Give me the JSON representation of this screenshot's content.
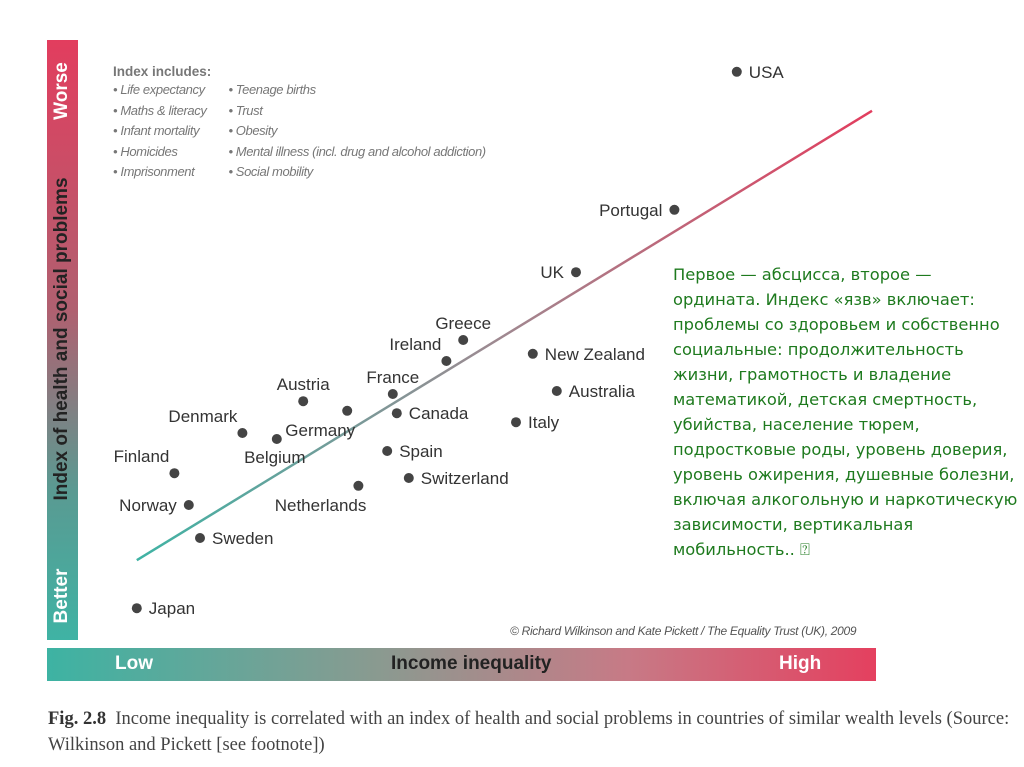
{
  "chart_data": {
    "type": "scatter",
    "ylabel": "Index of health and social problems",
    "xlabel": "Income inequality",
    "y_low": "Better",
    "y_high": "Worse",
    "x_low": "Low",
    "x_high": "High",
    "xlim": [
      0,
      100
    ],
    "ylim": [
      0,
      100
    ],
    "grid": false,
    "points": [
      {
        "name": "USA",
        "x": 82.1,
        "y": 94.7,
        "pos": "right"
      },
      {
        "name": "Portugal",
        "x": 74.3,
        "y": 71.7,
        "pos": "left"
      },
      {
        "name": "UK",
        "x": 62,
        "y": 61.3,
        "pos": "left"
      },
      {
        "name": "Greece",
        "x": 47.9,
        "y": 50,
        "pos": "above"
      },
      {
        "name": "Ireland",
        "x": 45.8,
        "y": 46.5,
        "pos": "aboveleft"
      },
      {
        "name": "New Zealand",
        "x": 56.6,
        "y": 47.7,
        "pos": "right"
      },
      {
        "name": "Australia",
        "x": 59.6,
        "y": 41.5,
        "pos": "right"
      },
      {
        "name": "France",
        "x": 39.1,
        "y": 41,
        "pos": "above"
      },
      {
        "name": "Canada",
        "x": 39.6,
        "y": 37.8,
        "pos": "right"
      },
      {
        "name": "Italy",
        "x": 54.5,
        "y": 36.3,
        "pos": "right"
      },
      {
        "name": "Austria",
        "x": 27.9,
        "y": 39.8,
        "pos": "above"
      },
      {
        "name": "Germany",
        "x": 33.4,
        "y": 38.2,
        "pos": "belowleft"
      },
      {
        "name": "Denmark",
        "x": 20.3,
        "y": 34.5,
        "pos": "aboveleft"
      },
      {
        "name": "Belgium",
        "x": 24.6,
        "y": 33.5,
        "pos": "below"
      },
      {
        "name": "Finland",
        "x": 11.8,
        "y": 27.8,
        "pos": "aboveleft"
      },
      {
        "name": "Spain",
        "x": 38.4,
        "y": 31.5,
        "pos": "right"
      },
      {
        "name": "Switzerland",
        "x": 41.1,
        "y": 27,
        "pos": "right"
      },
      {
        "name": "Netherlands",
        "x": 34.8,
        "y": 25.7,
        "pos": "belowleft"
      },
      {
        "name": "Norway",
        "x": 13.6,
        "y": 22.5,
        "pos": "left"
      },
      {
        "name": "Sweden",
        "x": 15,
        "y": 17,
        "pos": "right"
      },
      {
        "name": "Japan",
        "x": 7.1,
        "y": 5.3,
        "pos": "right"
      }
    ],
    "trendline": {
      "from": [
        7.1,
        13.3
      ],
      "to": [
        99,
        88.2
      ]
    },
    "index_box": {
      "title": "Index includes:",
      "col1": [
        "• Life expectancy",
        "• Maths & literacy",
        "• Infant mortality",
        "• Homicides",
        "• Imprisonment"
      ],
      "col2": [
        "• Teenage births",
        "• Trust",
        "• Obesity",
        "• Mental illness (incl. drug and alcohol addiction)",
        "• Social mobility"
      ]
    },
    "credit": "© Richard Wilkinson and Kate Pickett / The Equality Trust (UK), 2009"
  },
  "note": "Первое — абсцисса, второе — ордината. Индекс «язв» включает: проблемы со здоровьем и собственно социальные: продолжительность жизни, грамотность и владение математикой, детская смертность, убийства, население тюрем, подростковые роды, уровень доверия, уровень ожирения, душевные болезни, включая алкогольную и наркотическую зависимости, вертикальная мобильность.. ⍰",
  "caption": {
    "fig": "Fig. 2.8",
    "text": "Income inequality is correlated with an index of health and social problems in countries of similar wealth levels (Source: Wilkinson and Pickett [see footnote])"
  },
  "colors": {
    "top": "#e23d5e",
    "bottom": "#3fb3a4",
    "note": "#1e7a1e"
  }
}
